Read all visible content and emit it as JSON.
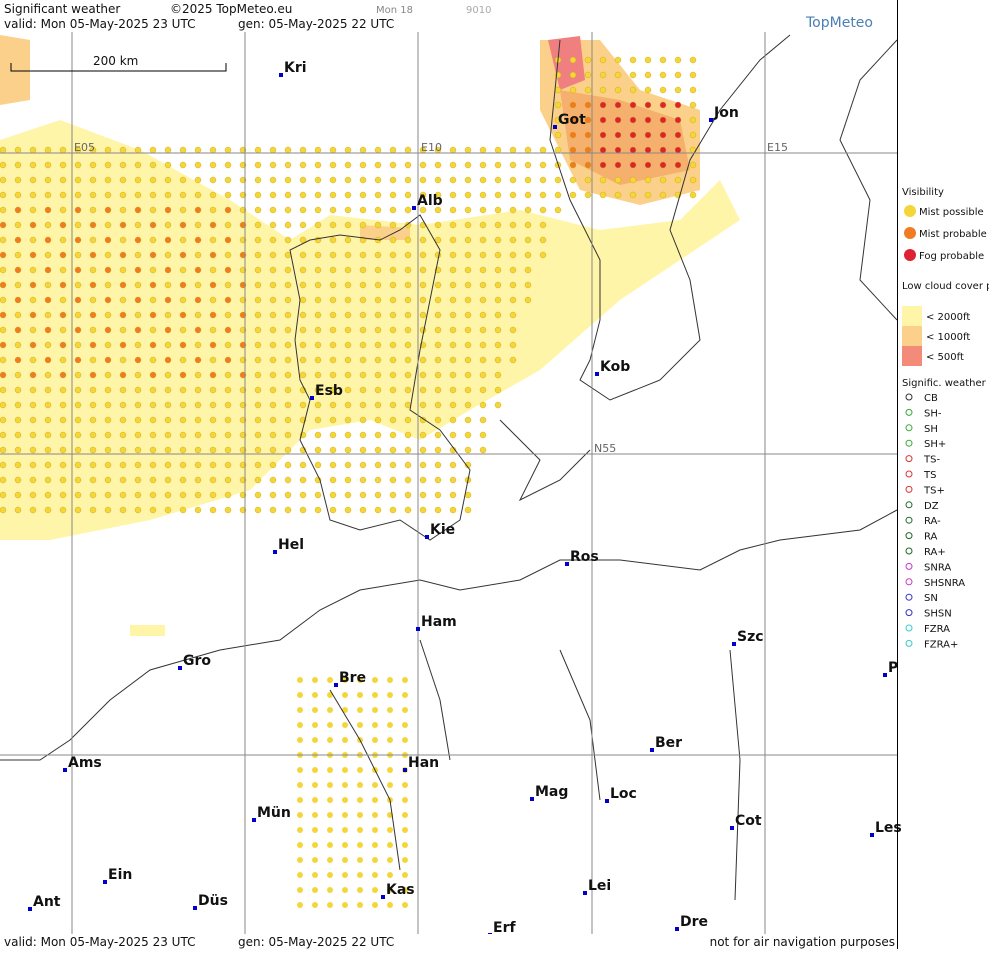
{
  "header": {
    "title": "Significant weather",
    "copyright": "©2025 TopMeteo.eu",
    "run": "Mon 18",
    "code": "9010",
    "valid": "valid:  Mon  05-May-2025  23 UTC",
    "gen": "gen: 05-May-2025 22 UTC",
    "logo": "TopMeteo"
  },
  "footer": {
    "valid": "valid:  Mon  05-May-2025  23 UTC",
    "gen": "gen: 05-May-2025 22 UTC",
    "disclaimer": "not for air navigation purposes"
  },
  "scale": "200 km",
  "grid_labels": [
    "E05",
    "E10",
    "E15",
    "N55"
  ],
  "cities": [
    "Kri",
    "Got",
    "Jon",
    "Alb",
    "Kob",
    "Esb",
    "Kie",
    "Hel",
    "Ros",
    "Ham",
    "Szc",
    "Gro",
    "Bre",
    "P",
    "Ber",
    "Ams",
    "Han",
    "Mag",
    "Loc",
    "Cot",
    "Les",
    "Mün",
    "Ein",
    "Kas",
    "Lei",
    "Ant",
    "Düs",
    "Dre",
    "Erf"
  ],
  "legend": {
    "visibility": {
      "title": "Visibility",
      "items": [
        "Mist possible",
        "Mist probable",
        "Fog probable"
      ]
    },
    "low_cloud": {
      "title": "Low cloud cover probable",
      "items": [
        "< 2000ft",
        "< 1000ft",
        "<  500ft"
      ]
    },
    "sigwx": {
      "title": "Signific. weather",
      "items": [
        "CB",
        "SH-",
        "SH",
        "SH+",
        "TS-",
        "TS",
        "TS+",
        "DZ",
        "RA-",
        "RA",
        "RA+",
        "SNRA",
        "SHSNRA",
        "SN",
        "SHSN",
        "FZRA",
        "FZRA+"
      ]
    }
  }
}
